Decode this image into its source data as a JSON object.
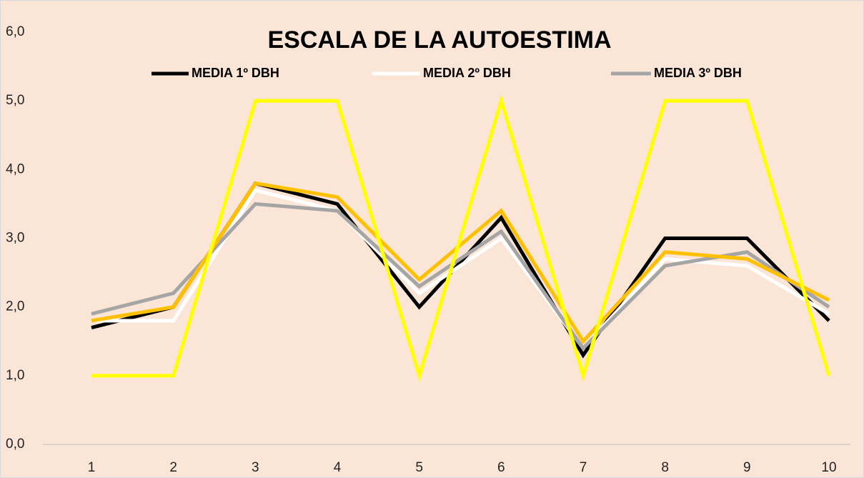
{
  "chart_data": {
    "type": "line",
    "title": "ESCALA DE LA AUTOESTIMA",
    "categories": [
      "1",
      "2",
      "3",
      "4",
      "5",
      "6",
      "7",
      "8",
      "9",
      "10"
    ],
    "series": [
      {
        "name": "MEDIA 1º DBH",
        "color": "#000000",
        "values": [
          1.7,
          2.0,
          3.8,
          3.5,
          2.0,
          3.3,
          1.3,
          3.0,
          3.0,
          1.8
        ]
      },
      {
        "name": "MEDIA 2º DBH",
        "color": "#ffffff",
        "values": [
          1.8,
          1.8,
          3.7,
          3.4,
          2.2,
          3.0,
          1.4,
          2.7,
          2.6,
          1.9
        ]
      },
      {
        "name": "MEDIA 3º DBH",
        "color": "#a5a5a5",
        "values": [
          1.9,
          2.2,
          3.5,
          3.4,
          2.3,
          3.1,
          1.4,
          2.6,
          2.8,
          2.0
        ]
      },
      {
        "color": "#ffc000",
        "values": [
          1.8,
          2.0,
          3.8,
          3.6,
          2.4,
          3.4,
          1.5,
          2.8,
          2.7,
          2.1
        ]
      },
      {
        "color": "#ffff00",
        "values": [
          1,
          1,
          5,
          5,
          1,
          5,
          1,
          5,
          5,
          1
        ]
      }
    ],
    "ylim": [
      0,
      6
    ],
    "yticks": [
      {
        "value": 0,
        "label": "0,0"
      },
      {
        "value": 1,
        "label": "1,0"
      },
      {
        "value": 2,
        "label": "2,0"
      },
      {
        "value": 3,
        "label": "3,0"
      },
      {
        "value": 4,
        "label": "4,0"
      },
      {
        "value": 5,
        "label": "5,0"
      },
      {
        "value": 6,
        "label": "6,0"
      }
    ],
    "grid": false
  }
}
